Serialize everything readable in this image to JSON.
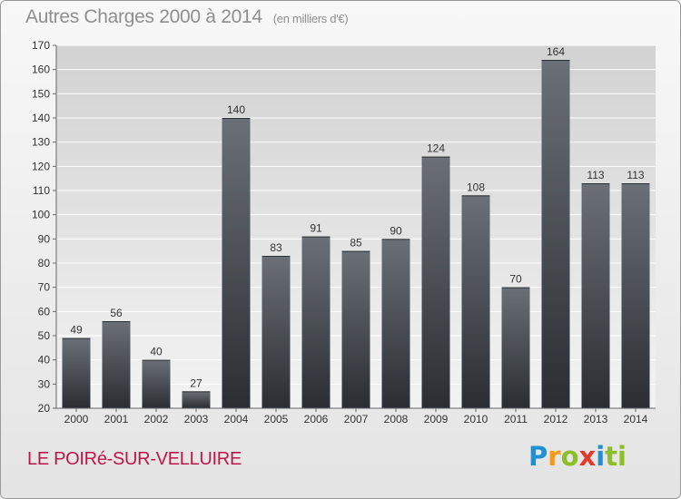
{
  "header": {
    "title": "Autres Charges 2000 à 2014",
    "unit": "(en milliers d'€)"
  },
  "location": "LE POIRé-SUR-VELLUIRE",
  "brand": {
    "letters": [
      "P",
      "r",
      "o",
      "x",
      "i",
      "ti"
    ]
  },
  "chart_data": {
    "type": "bar",
    "title": "Autres Charges 2000 à 2014",
    "subtitle": "(en milliers d'€)",
    "categories": [
      "2000",
      "2001",
      "2002",
      "2003",
      "2004",
      "2005",
      "2006",
      "2007",
      "2008",
      "2009",
      "2010",
      "2011",
      "2012",
      "2013",
      "2014"
    ],
    "values": [
      49,
      56,
      40,
      27,
      140,
      83,
      91,
      85,
      90,
      124,
      108,
      70,
      164,
      113,
      113
    ],
    "ylim": [
      20,
      170
    ],
    "yticks": [
      20,
      30,
      40,
      50,
      60,
      70,
      80,
      90,
      100,
      110,
      120,
      130,
      140,
      150,
      160,
      170
    ],
    "grid": true,
    "colors": {
      "bar_top": "#6b7076",
      "bar_bottom": "#2a2e33",
      "plot_bg_top": "#d4d4d4",
      "plot_bg_bottom": "#f2f2f2"
    }
  }
}
